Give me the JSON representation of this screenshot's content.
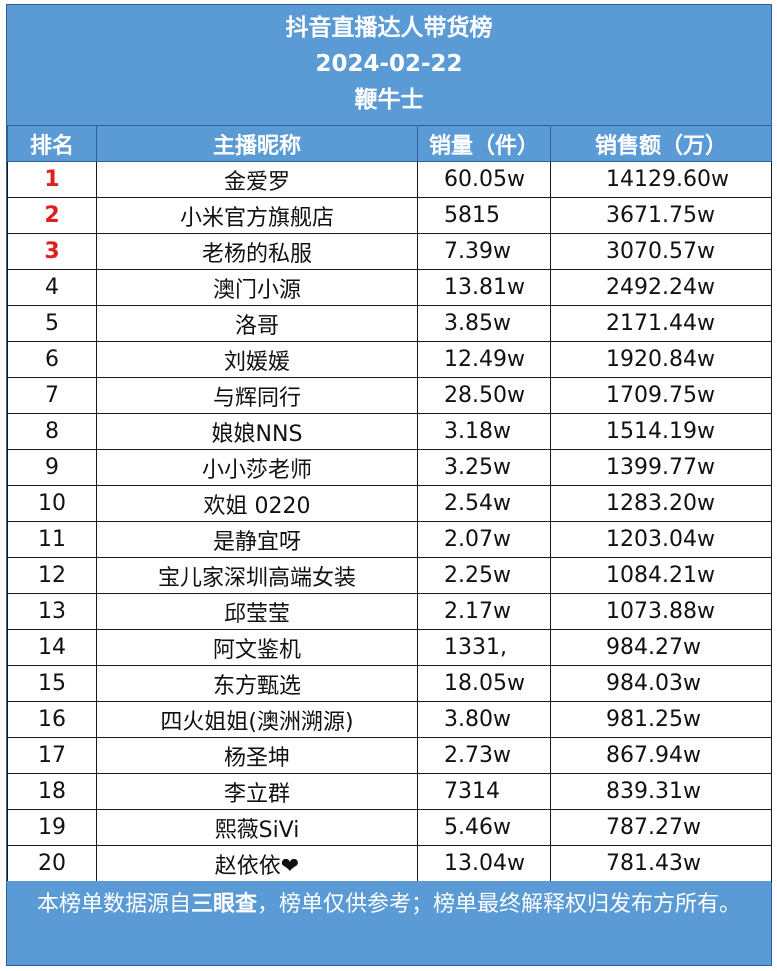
{
  "title": {
    "line1": "抖音直播达人带货榜",
    "line2": "2024-02-22",
    "line3": "鞭牛士"
  },
  "columns": {
    "rank": "排名",
    "name": "主播昵称",
    "sales_volume": "销量（件）",
    "sales_amount": "销售额（万）"
  },
  "rows": [
    {
      "rank": "1",
      "name": "金爱罗",
      "sales_volume": "60.05w",
      "sales_amount": "14129.60w"
    },
    {
      "rank": "2",
      "name": "小米官方旗舰店",
      "sales_volume": "5815",
      "sales_amount": "3671.75w"
    },
    {
      "rank": "3",
      "name": "老杨的私服",
      "sales_volume": "7.39w",
      "sales_amount": "3070.57w"
    },
    {
      "rank": "4",
      "name": "澳门小源",
      "sales_volume": "13.81w",
      "sales_amount": "2492.24w"
    },
    {
      "rank": "5",
      "name": "洛哥",
      "sales_volume": "3.85w",
      "sales_amount": "2171.44w"
    },
    {
      "rank": "6",
      "name": "刘媛媛",
      "sales_volume": "12.49w",
      "sales_amount": "1920.84w"
    },
    {
      "rank": "7",
      "name": "与辉同行",
      "sales_volume": "28.50w",
      "sales_amount": "1709.75w"
    },
    {
      "rank": "8",
      "name": "娘娘NNS",
      "sales_volume": "3.18w",
      "sales_amount": "1514.19w"
    },
    {
      "rank": "9",
      "name": "小小莎老师",
      "sales_volume": "3.25w",
      "sales_amount": "1399.77w"
    },
    {
      "rank": "10",
      "name": "欢姐 0220",
      "sales_volume": "2.54w",
      "sales_amount": "1283.20w"
    },
    {
      "rank": "11",
      "name": "是静宜呀",
      "sales_volume": "2.07w",
      "sales_amount": "1203.04w"
    },
    {
      "rank": "12",
      "name": "宝儿家深圳高端女装",
      "sales_volume": "2.25w",
      "sales_amount": "1084.21w"
    },
    {
      "rank": "13",
      "name": "邱莹莹",
      "sales_volume": "2.17w",
      "sales_amount": "1073.88w"
    },
    {
      "rank": "14",
      "name": "阿文鉴机",
      "sales_volume": "1331,",
      "sales_amount": "984.27w"
    },
    {
      "rank": "15",
      "name": "东方甄选",
      "sales_volume": "18.05w",
      "sales_amount": "984.03w"
    },
    {
      "rank": "16",
      "name": "四火姐姐(澳洲溯源)",
      "sales_volume": "3.80w",
      "sales_amount": "981.25w"
    },
    {
      "rank": "17",
      "name": "杨圣坤",
      "sales_volume": "2.73w",
      "sales_amount": "867.94w"
    },
    {
      "rank": "18",
      "name": "李立群",
      "sales_volume": "7314",
      "sales_amount": "839.31w"
    },
    {
      "rank": "19",
      "name": "熙薇SiVi",
      "sales_volume": "5.46w",
      "sales_amount": "787.27w"
    },
    {
      "rank": "20",
      "name": "赵依依❤",
      "sales_volume": "13.04w",
      "sales_amount": "781.43w"
    }
  ],
  "footer": {
    "part1": "本榜单数据源自",
    "source": "三眼查",
    "part2": "，榜单仅供参考；榜单最终解释权归发布方所有。"
  },
  "colors": {
    "header_bg": "#5b9bd5",
    "top_rank": "#e0201b"
  }
}
